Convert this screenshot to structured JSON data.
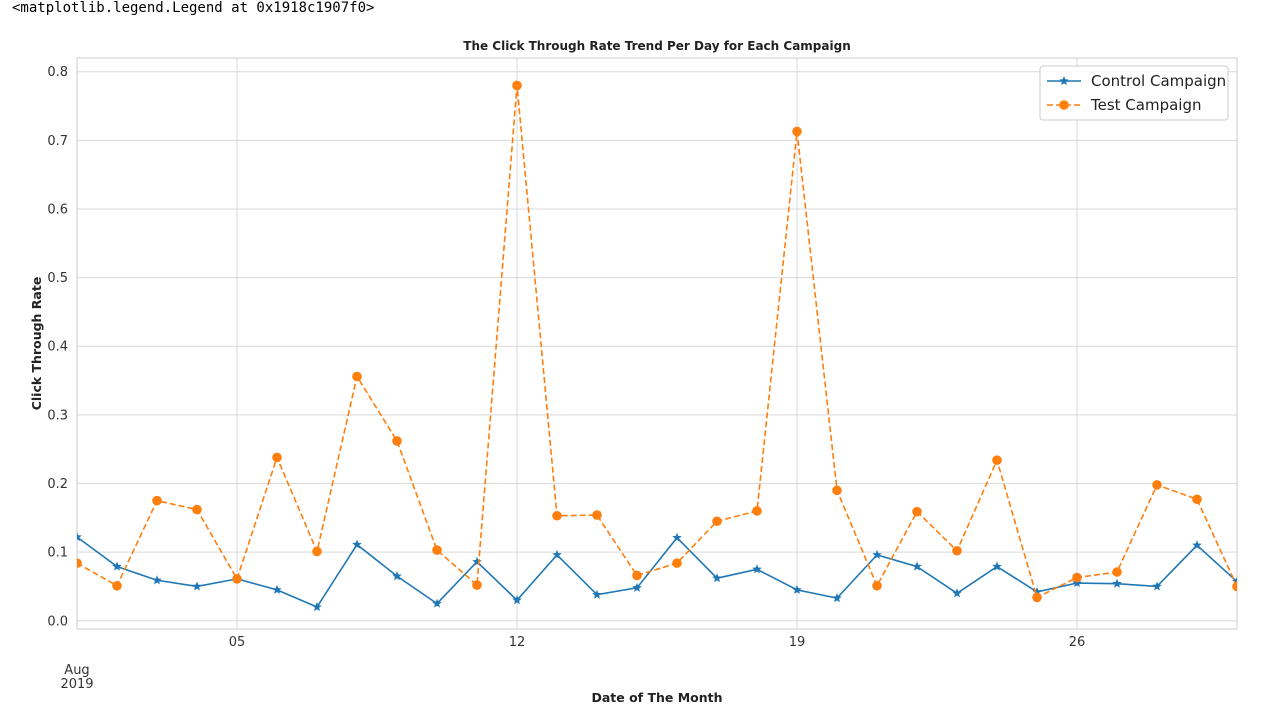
{
  "output": {
    "repr_text": "<matplotlib.legend.Legend at 0x1918c1907f0>"
  },
  "chart_data": {
    "type": "line",
    "title": "The Click Through Rate Trend Per Day for Each Campaign",
    "xlabel": "Date of The Month",
    "ylabel": "Click Through Rate",
    "x": [
      "2019-08-01",
      "2019-08-02",
      "2019-08-03",
      "2019-08-04",
      "2019-08-05",
      "2019-08-06",
      "2019-08-07",
      "2019-08-08",
      "2019-08-09",
      "2019-08-10",
      "2019-08-11",
      "2019-08-12",
      "2019-08-13",
      "2019-08-14",
      "2019-08-15",
      "2019-08-16",
      "2019-08-17",
      "2019-08-18",
      "2019-08-19",
      "2019-08-20",
      "2019-08-21",
      "2019-08-22",
      "2019-08-23",
      "2019-08-24",
      "2019-08-25",
      "2019-08-26",
      "2019-08-27",
      "2019-08-28",
      "2019-08-29",
      "2019-08-30"
    ],
    "x_ticks": [
      {
        "date": "2019-08-05",
        "label": "05"
      },
      {
        "date": "2019-08-12",
        "label": "12"
      },
      {
        "date": "2019-08-19",
        "label": "19"
      },
      {
        "date": "2019-08-26",
        "label": "26"
      }
    ],
    "x_major_label": {
      "line1": "Aug",
      "line2": "2019"
    },
    "y_ticks": [
      "0.0",
      "0.1",
      "0.2",
      "0.3",
      "0.4",
      "0.5",
      "0.6",
      "0.7",
      "0.8"
    ],
    "ylim": [
      -0.012,
      0.82
    ],
    "grid": true,
    "legend_position": "top-right",
    "series": [
      {
        "name": "Control Campaign",
        "color": "#1f77b4",
        "marker": "star",
        "linestyle": "solid",
        "values": [
          0.122,
          0.079,
          0.059,
          0.05,
          0.061,
          0.045,
          0.02,
          0.111,
          0.065,
          0.025,
          0.086,
          0.03,
          0.096,
          0.038,
          0.048,
          0.121,
          0.062,
          0.075,
          0.045,
          0.033,
          0.096,
          0.079,
          0.04,
          0.079,
          0.042,
          0.055,
          0.054,
          0.05,
          0.11,
          0.057
        ]
      },
      {
        "name": "Test Campaign",
        "color": "#ff7f0e",
        "marker": "circle",
        "linestyle": "dashed",
        "values": [
          0.084,
          0.051,
          0.175,
          0.162,
          0.061,
          0.238,
          0.101,
          0.356,
          0.262,
          0.103,
          0.052,
          0.78,
          0.153,
          0.154,
          0.066,
          0.084,
          0.145,
          0.16,
          0.713,
          0.19,
          0.051,
          0.159,
          0.102,
          0.234,
          0.034,
          0.063,
          0.071,
          0.198,
          0.177,
          0.05
        ]
      }
    ]
  }
}
